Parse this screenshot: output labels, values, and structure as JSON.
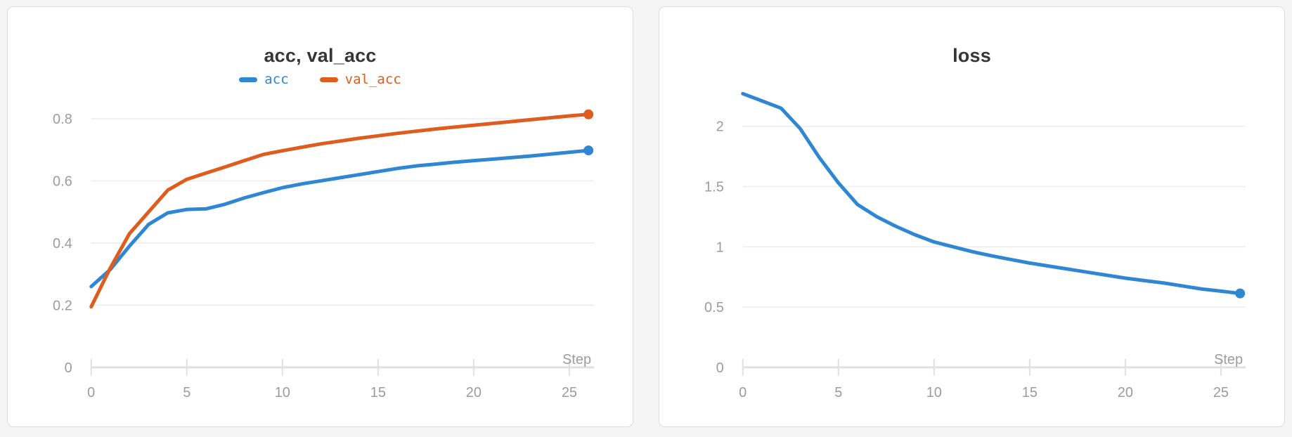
{
  "page": {
    "background": "#f5f5f6",
    "panel_background": "#ffffff",
    "panel_border": "#dcdcdc"
  },
  "colors": {
    "accent_blue": "#2f86d2",
    "accent_orange": "#dd5c1e",
    "tick_label": "#9b9ba0",
    "axis_line": "#e0e0e0",
    "gridline": "#ededed",
    "title_text": "#363636"
  },
  "chart_data": [
    {
      "type": "line",
      "title": "acc, val_acc",
      "xlabel": "Step",
      "legend_position": "top-center",
      "grid": "horizontal",
      "xticks": [
        0,
        5,
        10,
        15,
        20,
        25
      ],
      "yticks": [
        0,
        0.2,
        0.4,
        0.6,
        0.8
      ],
      "ytick_labels": [
        "0",
        "0.2",
        "0.4",
        "0.6",
        "0.8"
      ],
      "xlim": [
        0,
        26
      ],
      "ylim": [
        0,
        0.865
      ],
      "end_marker": true,
      "x": [
        0,
        1,
        2,
        3,
        4,
        5,
        6,
        7,
        8,
        9,
        10,
        11,
        12,
        13,
        14,
        15,
        16,
        17,
        18,
        19,
        20,
        21,
        22,
        23,
        24,
        25,
        26
      ],
      "series": [
        {
          "name": "acc",
          "color": "#2f86d2",
          "values": [
            0.26,
            0.315,
            0.39,
            0.46,
            0.497,
            0.508,
            0.51,
            0.525,
            0.545,
            0.562,
            0.578,
            0.59,
            0.6,
            0.61,
            0.62,
            0.63,
            0.64,
            0.648,
            0.654,
            0.66,
            0.665,
            0.67,
            0.675,
            0.68,
            0.686,
            0.692,
            0.698
          ]
        },
        {
          "name": "val_acc",
          "color": "#dd5c1e",
          "values": [
            0.195,
            0.32,
            0.43,
            0.5,
            0.57,
            0.605,
            0.625,
            0.645,
            0.665,
            0.685,
            0.697,
            0.708,
            0.719,
            0.728,
            0.737,
            0.745,
            0.753,
            0.76,
            0.767,
            0.773,
            0.779,
            0.785,
            0.791,
            0.797,
            0.803,
            0.809,
            0.814
          ]
        }
      ]
    },
    {
      "type": "line",
      "title": "loss",
      "xlabel": "Step",
      "legend_position": "none",
      "grid": "horizontal",
      "xticks": [
        0,
        5,
        10,
        15,
        20,
        25
      ],
      "yticks": [
        0,
        0.5,
        1,
        1.5,
        2
      ],
      "ytick_labels": [
        "0",
        "0.5",
        "1",
        "1.5",
        "2"
      ],
      "xlim": [
        0,
        26
      ],
      "ylim": [
        0,
        2.23
      ],
      "end_marker": true,
      "x": [
        0,
        1,
        2,
        3,
        4,
        5,
        6,
        7,
        8,
        9,
        10,
        11,
        12,
        13,
        14,
        15,
        16,
        17,
        18,
        19,
        20,
        21,
        22,
        23,
        24,
        25,
        26
      ],
      "series": [
        {
          "name": "loss",
          "color": "#2f86d2",
          "values": [
            2.27,
            2.21,
            2.15,
            1.98,
            1.74,
            1.53,
            1.35,
            1.25,
            1.17,
            1.1,
            1.04,
            1.0,
            0.96,
            0.925,
            0.895,
            0.865,
            0.84,
            0.815,
            0.79,
            0.765,
            0.74,
            0.72,
            0.7,
            0.675,
            0.65,
            0.632,
            0.613
          ]
        }
      ]
    }
  ]
}
